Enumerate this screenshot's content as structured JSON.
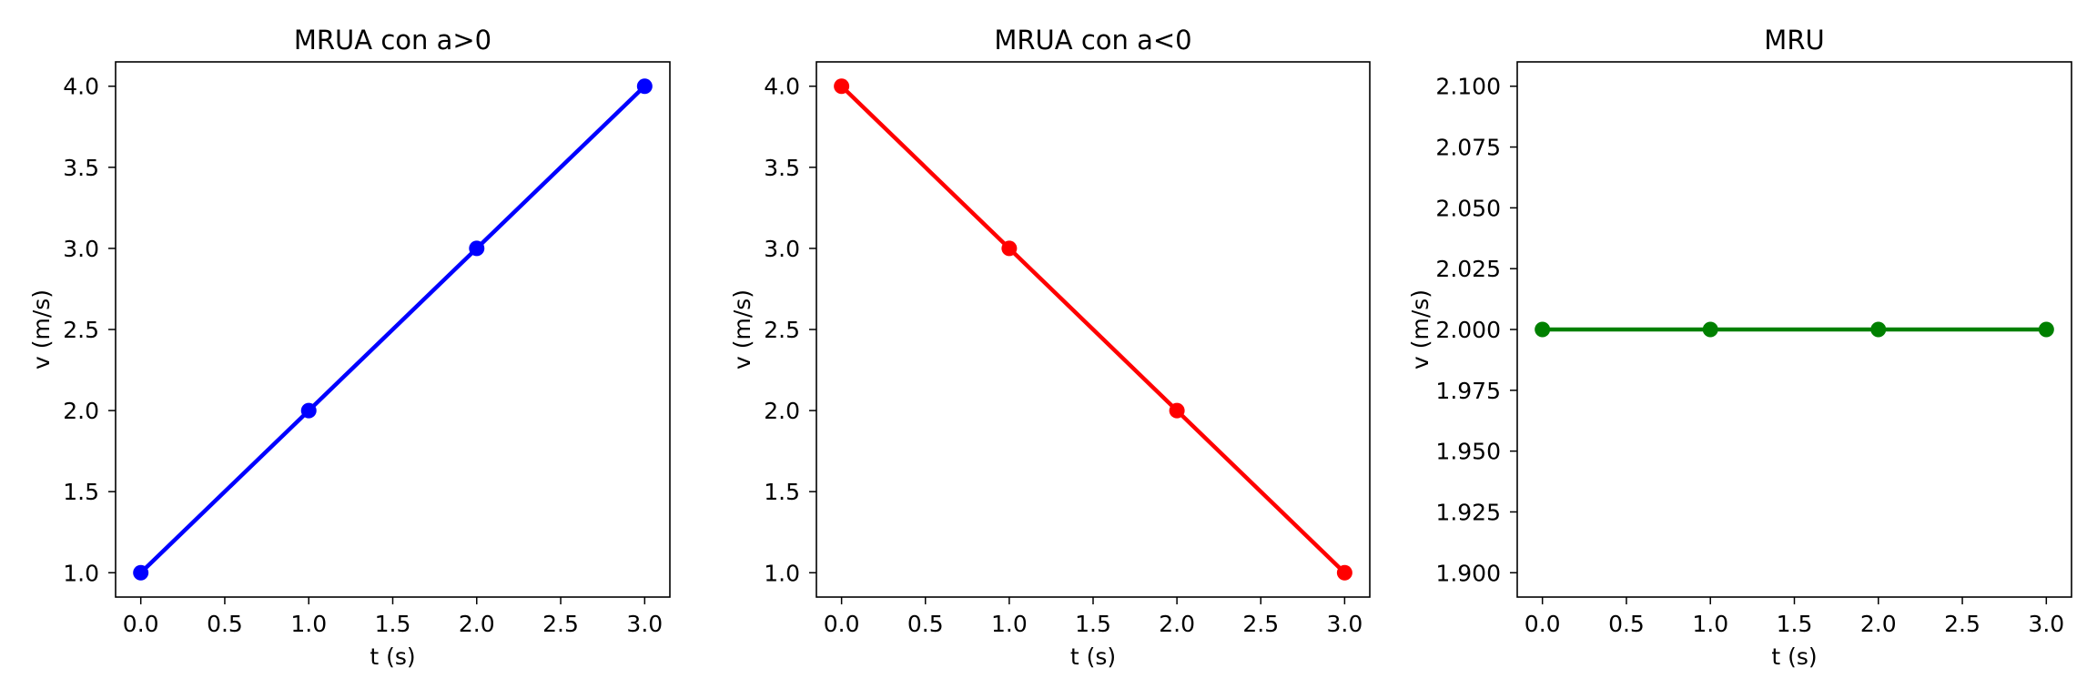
{
  "chart_data": [
    {
      "type": "line",
      "title": "MRUA con a>0",
      "xlabel": "t (s)",
      "ylabel": "v (m/s)",
      "x": [
        0,
        1,
        2,
        3
      ],
      "series": [
        {
          "name": "v",
          "values": [
            1,
            2,
            3,
            4
          ],
          "color": "#0000ff"
        }
      ],
      "xlim": [
        -0.15,
        3.15
      ],
      "ylim": [
        0.85,
        4.15
      ],
      "xticks": [
        0.0,
        0.5,
        1.0,
        1.5,
        2.0,
        2.5,
        3.0
      ],
      "xtick_labels": [
        "0.0",
        "0.5",
        "1.0",
        "1.5",
        "2.0",
        "2.5",
        "3.0"
      ],
      "yticks": [
        1.0,
        1.5,
        2.0,
        2.5,
        3.0,
        3.5,
        4.0
      ],
      "ytick_labels": [
        "1.0",
        "1.5",
        "2.0",
        "2.5",
        "3.0",
        "3.5",
        "4.0"
      ],
      "grid": false
    },
    {
      "type": "line",
      "title": "MRUA con a<0",
      "xlabel": "t (s)",
      "ylabel": "v (m/s)",
      "x": [
        0,
        1,
        2,
        3
      ],
      "series": [
        {
          "name": "v",
          "values": [
            4,
            3,
            2,
            1
          ],
          "color": "#ff0000"
        }
      ],
      "xlim": [
        -0.15,
        3.15
      ],
      "ylim": [
        0.85,
        4.15
      ],
      "xticks": [
        0.0,
        0.5,
        1.0,
        1.5,
        2.0,
        2.5,
        3.0
      ],
      "xtick_labels": [
        "0.0",
        "0.5",
        "1.0",
        "1.5",
        "2.0",
        "2.5",
        "3.0"
      ],
      "yticks": [
        1.0,
        1.5,
        2.0,
        2.5,
        3.0,
        3.5,
        4.0
      ],
      "ytick_labels": [
        "1.0",
        "1.5",
        "2.0",
        "2.5",
        "3.0",
        "3.5",
        "4.0"
      ],
      "grid": false
    },
    {
      "type": "line",
      "title": "MRU",
      "xlabel": "t (s)",
      "ylabel": "v (m/s)",
      "x": [
        0,
        1,
        2,
        3
      ],
      "series": [
        {
          "name": "v",
          "values": [
            2,
            2,
            2,
            2
          ],
          "color": "#008000"
        }
      ],
      "xlim": [
        -0.15,
        3.15
      ],
      "ylim": [
        1.89,
        2.11
      ],
      "xticks": [
        0.0,
        0.5,
        1.0,
        1.5,
        2.0,
        2.5,
        3.0
      ],
      "xtick_labels": [
        "0.0",
        "0.5",
        "1.0",
        "1.5",
        "2.0",
        "2.5",
        "3.0"
      ],
      "yticks": [
        1.9,
        1.925,
        1.95,
        1.975,
        2.0,
        2.025,
        2.05,
        2.075,
        2.1
      ],
      "ytick_labels": [
        "1.900",
        "1.925",
        "1.950",
        "1.975",
        "2.000",
        "2.025",
        "2.050",
        "2.075",
        "2.100"
      ],
      "grid": false
    }
  ]
}
